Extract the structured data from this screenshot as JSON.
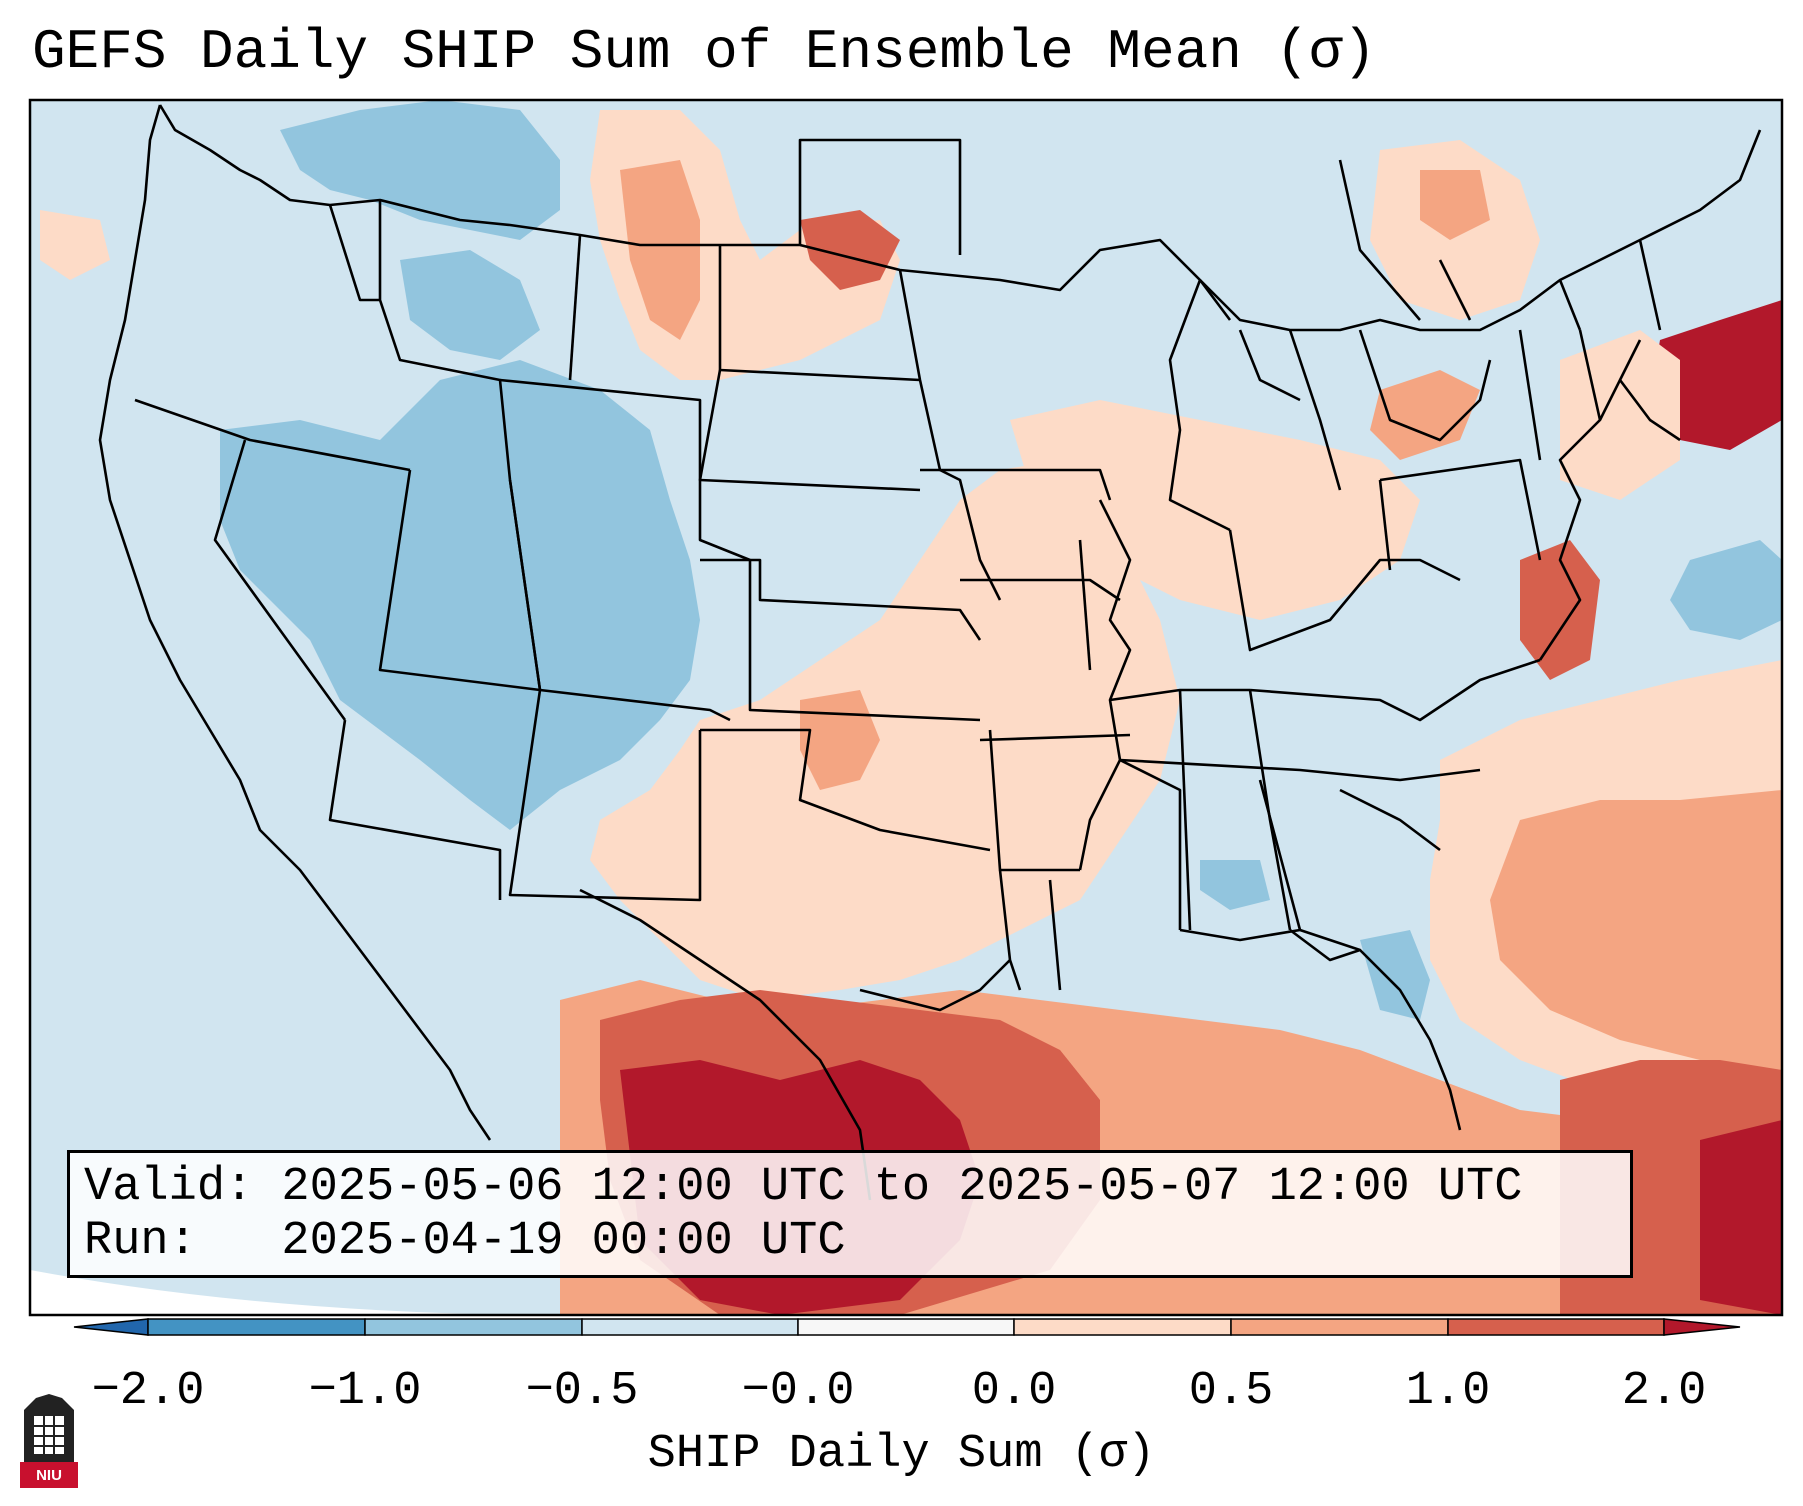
{
  "title": "GEFS Daily SHIP Sum of Ensemble Mean (σ)",
  "info": {
    "valid_line": "Valid: 2025-05-06 12:00 UTC to 2025-05-07 12:00 UTC",
    "run_line": "Run:   2025-04-19 00:00 UTC"
  },
  "colorbar": {
    "label": "SHIP Daily Sum (σ)",
    "ticks": [
      "−2.0",
      "−1.0",
      "−0.5",
      "−0.0",
      "0.0",
      "0.5",
      "1.0",
      "2.0"
    ],
    "colors": [
      "#4393c3",
      "#92c5de",
      "#d1e5f0",
      "#f7f7f7",
      "#fddbc7",
      "#f4a582",
      "#d6604d",
      "#b2182b"
    ],
    "extend_low_color": "#2166ac",
    "extend_high_color": "#b2182b"
  },
  "logo": {
    "text": "NIU",
    "color": "#c8102e"
  }
}
